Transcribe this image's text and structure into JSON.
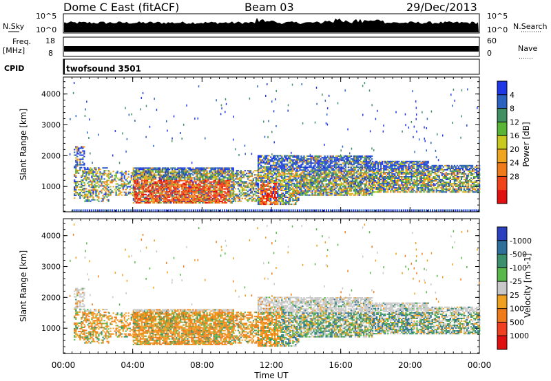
{
  "header": {
    "title": "Dome C East (fitACF)",
    "beam": "Beam 03",
    "date": "29/Dec/2013"
  },
  "param_panels": {
    "nsky_label": "N.Sky",
    "nsearch_label": "N.Search",
    "freq_label_1": "Freq.",
    "freq_label_2": "[MHz]",
    "nave_label": "Nave",
    "cpid_label": "CPID",
    "cpid_value": "twofsound 3501",
    "noise_left_ticks": [
      "10^5",
      "10^0"
    ],
    "noise_right_ticks": [
      "10^5",
      "10^0"
    ],
    "freq_ticks": [
      "18",
      "8"
    ],
    "nave_ticks": [
      "60",
      "0"
    ]
  },
  "chart_data": [
    {
      "type": "heatmap",
      "name": "Power",
      "ylabel": "Slant Range [km]",
      "ylim": [
        180,
        4550
      ],
      "yticks": [
        "1000",
        "2000",
        "3000",
        "4000"
      ],
      "xlim_hours": [
        0,
        24
      ],
      "colorbar_label": "Power [dB]",
      "colorbar_ticks": [
        "4",
        "8",
        "12",
        "16",
        "20",
        "24",
        "28"
      ],
      "colorbar_colors": [
        "#1f38e6",
        "#2c62c0",
        "#3f8f62",
        "#59b536",
        "#c8c81f",
        "#f0a520",
        "#f07b1a",
        "#f04418",
        "#e01010"
      ]
    },
    {
      "type": "heatmap",
      "name": "Velocity",
      "ylabel": "Slant Range [km]",
      "ylim": [
        180,
        4550
      ],
      "yticks": [
        "1000",
        "2000",
        "3000",
        "4000"
      ],
      "xlim_hours": [
        0,
        24
      ],
      "xlabel": "Time UT",
      "xticks": [
        "00:00",
        "04:00",
        "08:00",
        "12:00",
        "16:00",
        "20:00",
        "00:00"
      ],
      "colorbar_label": "Velocity [m s-1]",
      "colorbar_ticks": [
        "1000",
        "500",
        "100",
        "25",
        "-25",
        "-100",
        "-500",
        "-1000"
      ],
      "colorbar_colors": [
        "#2c3fbf",
        "#2f6f9c",
        "#3c8f6c",
        "#58b84a",
        "#c8c8c8",
        "#f0a020",
        "#f07b1a",
        "#f04020",
        "#e01010"
      ]
    }
  ]
}
